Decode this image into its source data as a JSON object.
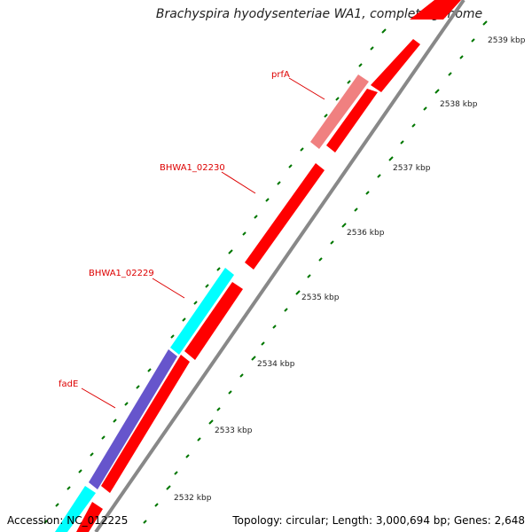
{
  "title": "Brachyspira hyodysenteriae WA1, complete genome",
  "accession": "Accession: NC_012225",
  "summary": "Topology: circular; Length: 3,000,694 bp; Genes: 2,648",
  "colors": {
    "forward_gene": "#ff0000",
    "pseudo_gene": "#f08080",
    "cyan_gene": "#00ffff",
    "purple_gene": "#6655cc",
    "backbone": "#888888",
    "tick": "#007700",
    "label": "#dd0000"
  },
  "gene_labels": [
    "prfA",
    "BHWA1_02230",
    "BHWA1_02229",
    "fadE"
  ],
  "kbp_labels": [
    "2539 kbp",
    "2538 kbp",
    "2537 kbp",
    "2536 kbp",
    "2535 kbp",
    "2534 kbp",
    "2533 kbp",
    "2532 kbp"
  ]
}
